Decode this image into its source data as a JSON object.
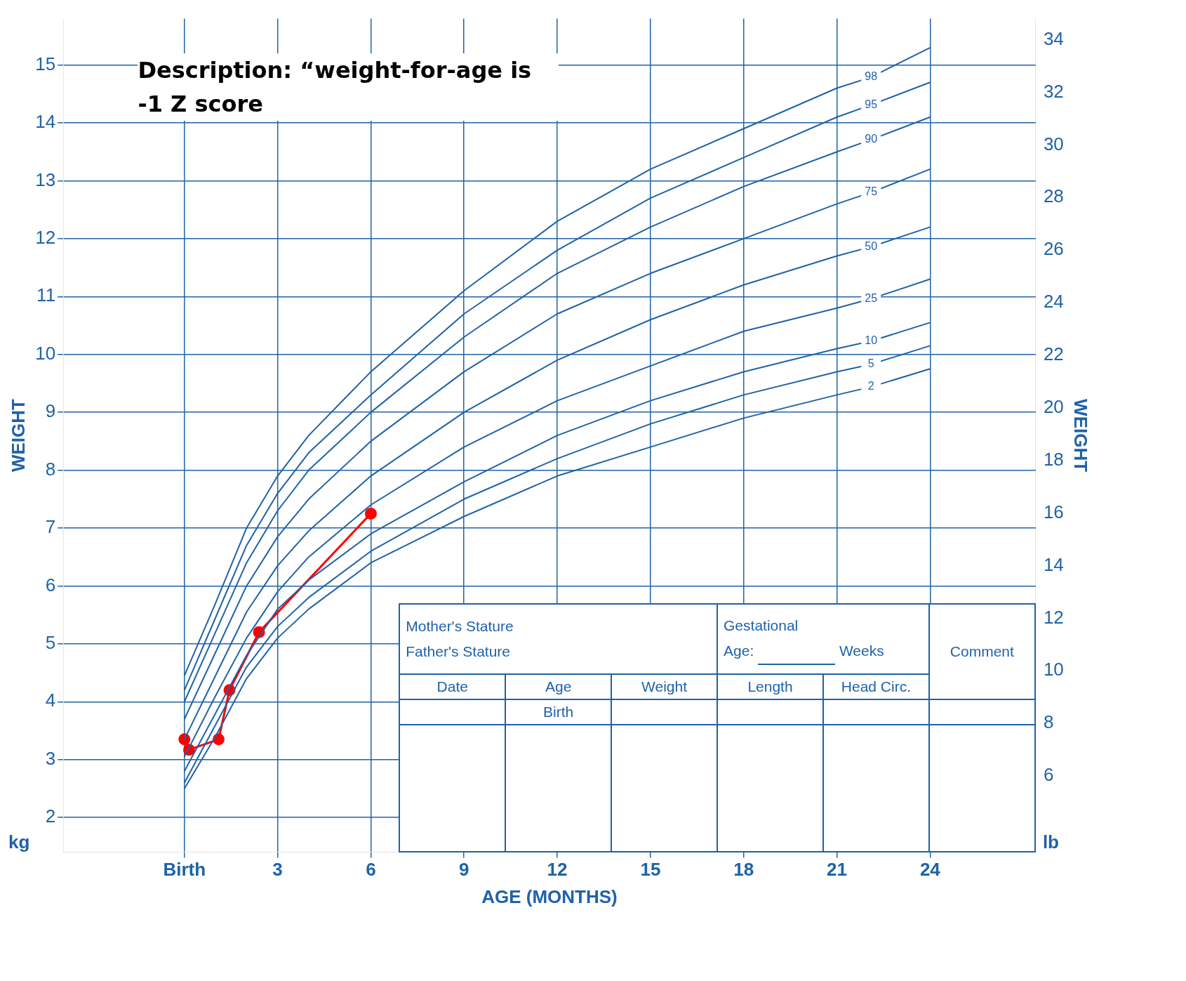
{
  "chart_data": {
    "type": "line",
    "xlabel": "AGE (MONTHS)",
    "ylabel": "WEIGHT",
    "y2label": "WEIGHT",
    "xlim": [
      -3.9,
      27.4
    ],
    "xticks": [
      {
        "value": 0,
        "label": "Birth"
      },
      3,
      6,
      9,
      12,
      15,
      18,
      21,
      24
    ],
    "ylim": [
      1.4,
      15.8
    ],
    "yticks": [
      2,
      3,
      4,
      5,
      6,
      7,
      8,
      9,
      10,
      11,
      12,
      13,
      14,
      15
    ],
    "y2lim": [
      3.1,
      34.8
    ],
    "y2ticks": [
      6,
      8,
      10,
      12,
      14,
      16,
      18,
      20,
      22,
      24,
      26,
      28,
      30,
      32,
      34
    ],
    "grid": true,
    "legend": false,
    "line_style": "solid",
    "series": [
      {
        "name": "2",
        "color": "#1f62a8",
        "marker": "none",
        "x": [
          0,
          1,
          2,
          3,
          4,
          6,
          9,
          12,
          15,
          18,
          21,
          22.1,
          24
        ],
        "values": [
          2.5,
          3.4,
          4.4,
          5.1,
          5.6,
          6.4,
          7.2,
          7.9,
          8.4,
          8.9,
          9.3,
          9.44,
          9.75
        ]
      },
      {
        "name": "5",
        "color": "#1f62a8",
        "marker": "none",
        "x": [
          0,
          1,
          2,
          3,
          4,
          6,
          9,
          12,
          15,
          18,
          21,
          22.1,
          24
        ],
        "values": [
          2.6,
          3.6,
          4.6,
          5.3,
          5.8,
          6.6,
          7.5,
          8.2,
          8.8,
          9.3,
          9.7,
          9.83,
          10.15
        ]
      },
      {
        "name": "10",
        "color": "#1f62a8",
        "marker": "none",
        "x": [
          0,
          1,
          2,
          3,
          4,
          6,
          9,
          12,
          15,
          18,
          21,
          22.1,
          24
        ],
        "values": [
          2.8,
          3.8,
          4.8,
          5.6,
          6.1,
          6.9,
          7.8,
          8.6,
          9.2,
          9.7,
          10.1,
          10.23,
          10.55
        ]
      },
      {
        "name": "25",
        "color": "#1f62a8",
        "marker": "none",
        "x": [
          0,
          1,
          2,
          3,
          4,
          6,
          9,
          12,
          15,
          18,
          21,
          22.1,
          24
        ],
        "values": [
          3.05,
          4.1,
          5.1,
          5.9,
          6.5,
          7.4,
          8.4,
          9.2,
          9.8,
          10.4,
          10.8,
          10.96,
          11.3
        ]
      },
      {
        "name": "50",
        "color": "#1f62a8",
        "marker": "none",
        "x": [
          0,
          1,
          2,
          3,
          4,
          6,
          9,
          12,
          15,
          18,
          21,
          22.1,
          24
        ],
        "values": [
          3.35,
          4.45,
          5.55,
          6.35,
          6.95,
          7.9,
          9.0,
          9.9,
          10.6,
          11.2,
          11.7,
          11.86,
          12.2
        ]
      },
      {
        "name": "75",
        "color": "#1f62a8",
        "marker": "none",
        "x": [
          0,
          1,
          2,
          3,
          4,
          6,
          9,
          12,
          15,
          18,
          21,
          22.1,
          24
        ],
        "values": [
          3.7,
          4.85,
          6.0,
          6.85,
          7.5,
          8.5,
          9.7,
          10.7,
          11.4,
          12.0,
          12.6,
          12.8,
          13.2
        ]
      },
      {
        "name": "90",
        "color": "#1f62a8",
        "marker": "none",
        "x": [
          0,
          1,
          2,
          3,
          4,
          6,
          9,
          12,
          15,
          18,
          21,
          22.1,
          24
        ],
        "values": [
          4.0,
          5.2,
          6.4,
          7.3,
          8.0,
          9.0,
          10.3,
          11.4,
          12.2,
          12.9,
          13.5,
          13.71,
          14.1
        ]
      },
      {
        "name": "95",
        "color": "#1f62a8",
        "marker": "none",
        "x": [
          0,
          1,
          2,
          3,
          4,
          6,
          9,
          12,
          15,
          18,
          21,
          22.1,
          24
        ],
        "values": [
          4.2,
          5.45,
          6.7,
          7.6,
          8.3,
          9.3,
          10.7,
          11.8,
          12.7,
          13.4,
          14.1,
          14.31,
          14.7
        ]
      },
      {
        "name": "98",
        "color": "#1f62a8",
        "marker": "none",
        "x": [
          0,
          1,
          2,
          3,
          4,
          6,
          9,
          12,
          15,
          18,
          21,
          22.1,
          24
        ],
        "values": [
          4.45,
          5.7,
          7.0,
          7.9,
          8.6,
          9.7,
          11.1,
          12.3,
          13.2,
          13.9,
          14.6,
          14.79,
          15.3
        ]
      },
      {
        "color": "#ff0000",
        "marker": "circle",
        "x": [
          0,
          0.15,
          1.1,
          1.45,
          2.4,
          6
        ],
        "values": [
          3.35,
          3.17,
          3.35,
          4.2,
          5.2,
          7.25
        ]
      }
    ],
    "annotations": [
      "Description: “weight-for-age is -1 Z score",
      "Mother's Stature",
      "Father's Stature",
      "Gestational",
      "Age:",
      "Weeks",
      "Comment",
      "Date",
      "Age",
      "Weight",
      "Length",
      "Head  Circ.",
      "Birth",
      "kg",
      "lb"
    ]
  }
}
